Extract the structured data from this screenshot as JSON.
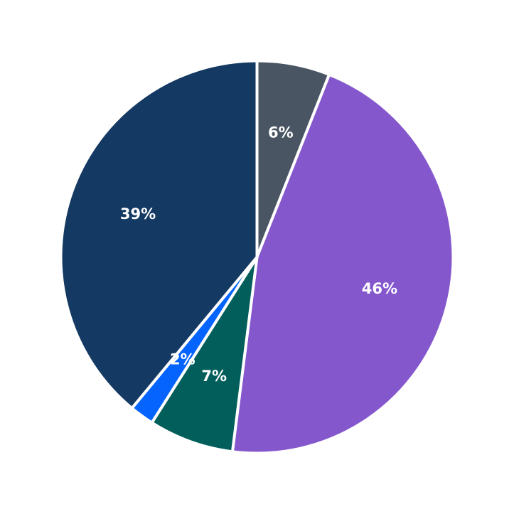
{
  "chart_data": {
    "type": "pie",
    "start_angle_deg": 90,
    "direction": "clockwise",
    "slices": [
      {
        "label": "6%",
        "value": 6,
        "color": "#4a5563"
      },
      {
        "label": "46%",
        "value": 46,
        "color": "#8557cd"
      },
      {
        "label": "7%",
        "value": 7,
        "color": "#025e5a"
      },
      {
        "label": "2%",
        "value": 2,
        "color": "#0564fd"
      },
      {
        "label": "39%",
        "value": 39,
        "color": "#143962"
      }
    ]
  }
}
